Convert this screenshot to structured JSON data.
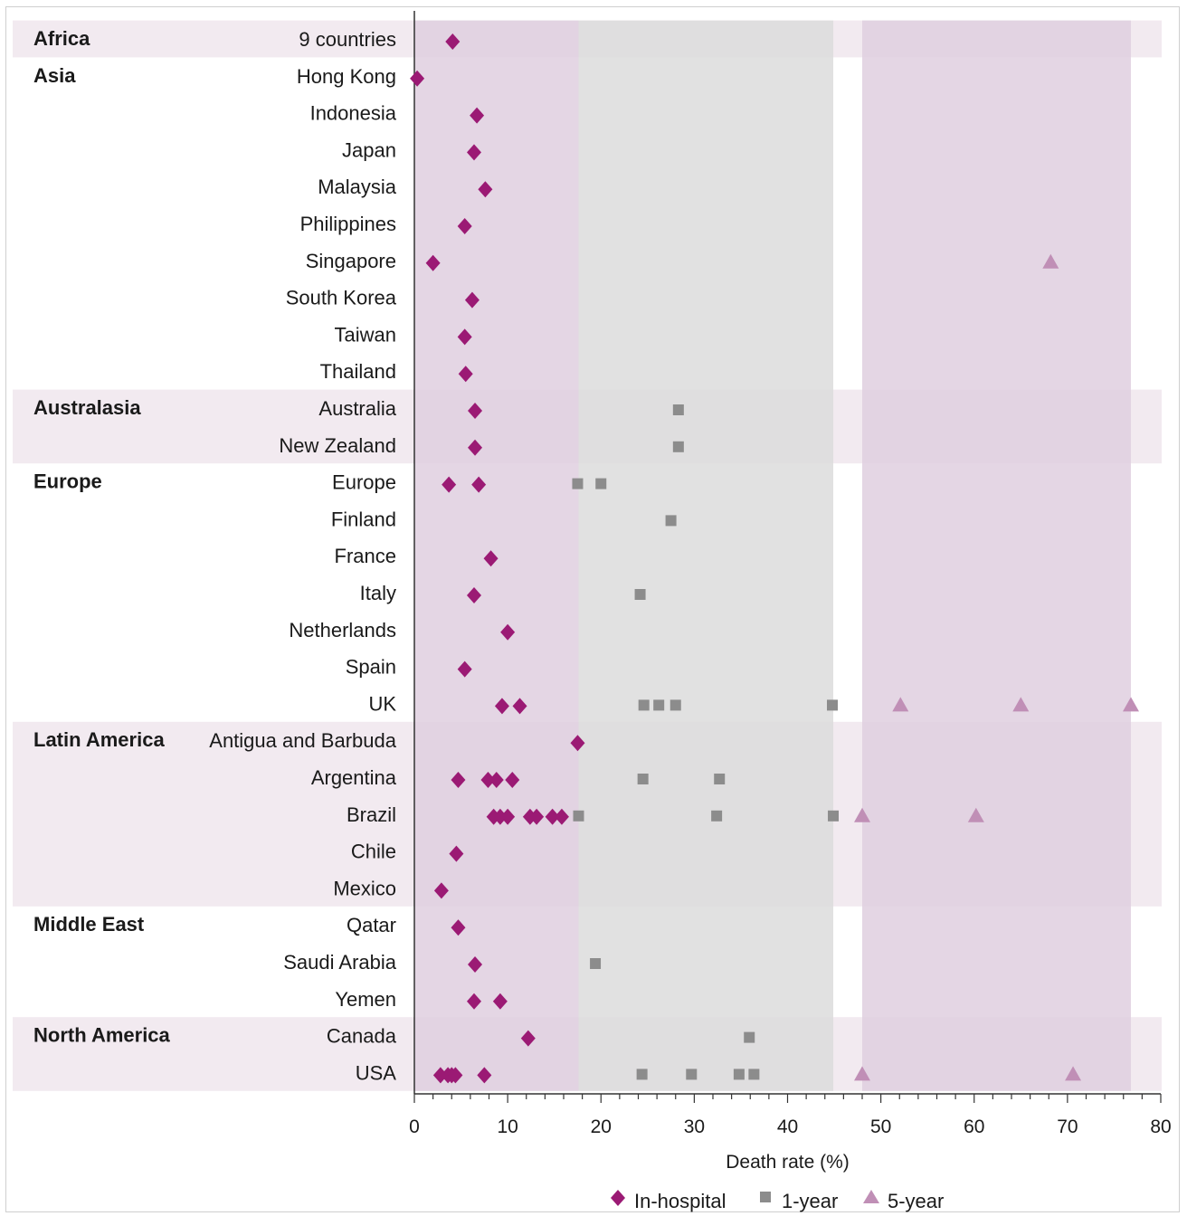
{
  "chart_data": {
    "type": "scatter",
    "xlabel": "Death rate (%)",
    "xlim": [
      0,
      80
    ],
    "x_ticks": [
      "0",
      "10",
      "20",
      "30",
      "40",
      "50",
      "60",
      "70",
      "80"
    ],
    "colors": {
      "in_hospital": "#9b1a74",
      "one_year": "#8c8c8c",
      "five_year": "#c08fb6",
      "band_in_hospital": "#dfcfdf",
      "band_one_year": "#dcdcdc",
      "band_five_year": "#dfcfdf",
      "region_shade": "#f2eaf0"
    },
    "ranges": {
      "in_hospital": [
        0,
        17.6
      ],
      "one_year": [
        17.6,
        44.9
      ],
      "five_year": [
        48,
        76.8
      ]
    },
    "legend": [
      {
        "key": "in_hospital",
        "label": "In-hospital",
        "marker": "diamond"
      },
      {
        "key": "one_year",
        "label": "1-year",
        "marker": "square"
      },
      {
        "key": "five_year",
        "label": "5-year",
        "marker": "triangle"
      }
    ],
    "regions": [
      {
        "name": "Africa",
        "shaded": true,
        "rows": [
          {
            "label": "9 countries",
            "in_hospital": [
              4.1
            ],
            "one_year": [],
            "five_year": []
          }
        ]
      },
      {
        "name": "Asia",
        "shaded": false,
        "rows": [
          {
            "label": "Hong Kong",
            "in_hospital": [
              0.3
            ],
            "one_year": [],
            "five_year": []
          },
          {
            "label": "Indonesia",
            "in_hospital": [
              6.7
            ],
            "one_year": [],
            "five_year": []
          },
          {
            "label": "Japan",
            "in_hospital": [
              6.4
            ],
            "one_year": [],
            "five_year": []
          },
          {
            "label": "Malaysia",
            "in_hospital": [
              7.6
            ],
            "one_year": [],
            "five_year": []
          },
          {
            "label": "Philippines",
            "in_hospital": [
              5.4
            ],
            "one_year": [],
            "five_year": []
          },
          {
            "label": "Singapore",
            "in_hospital": [
              2.0
            ],
            "one_year": [],
            "five_year": [
              68.2
            ]
          },
          {
            "label": "South Korea",
            "in_hospital": [
              6.2
            ],
            "one_year": [],
            "five_year": []
          },
          {
            "label": "Taiwan",
            "in_hospital": [
              5.4
            ],
            "one_year": [],
            "five_year": []
          },
          {
            "label": "Thailand",
            "in_hospital": [
              5.5
            ],
            "one_year": [],
            "five_year": []
          }
        ]
      },
      {
        "name": "Australasia",
        "shaded": true,
        "rows": [
          {
            "label": "Australia",
            "in_hospital": [
              6.5
            ],
            "one_year": [
              28.3
            ],
            "five_year": []
          },
          {
            "label": "New Zealand",
            "in_hospital": [
              6.5
            ],
            "one_year": [
              28.3
            ],
            "five_year": []
          }
        ]
      },
      {
        "name": "Europe",
        "shaded": false,
        "rows": [
          {
            "label": "Europe",
            "in_hospital": [
              3.7,
              6.9
            ],
            "one_year": [
              17.5,
              20.0
            ],
            "five_year": []
          },
          {
            "label": "Finland",
            "in_hospital": [],
            "one_year": [
              27.5
            ],
            "five_year": []
          },
          {
            "label": "France",
            "in_hospital": [
              8.2
            ],
            "one_year": [],
            "five_year": []
          },
          {
            "label": "Italy",
            "in_hospital": [
              6.4
            ],
            "one_year": [
              24.2
            ],
            "five_year": []
          },
          {
            "label": "Netherlands",
            "in_hospital": [
              10.0
            ],
            "one_year": [],
            "five_year": []
          },
          {
            "label": "Spain",
            "in_hospital": [
              5.4
            ],
            "one_year": [],
            "five_year": []
          },
          {
            "label": "UK",
            "in_hospital": [
              9.4,
              11.3
            ],
            "one_year": [
              24.6,
              26.2,
              28.0,
              44.8
            ],
            "five_year": [
              52.1,
              65.0,
              76.8
            ]
          }
        ]
      },
      {
        "name": "Latin America",
        "shaded": true,
        "rows": [
          {
            "label": "Antigua and Barbuda",
            "in_hospital": [
              17.5
            ],
            "one_year": [],
            "five_year": []
          },
          {
            "label": "Argentina",
            "in_hospital": [
              4.7,
              7.9,
              8.8,
              10.5
            ],
            "one_year": [
              24.5,
              32.7
            ],
            "five_year": []
          },
          {
            "label": "Brazil",
            "in_hospital": [
              8.5,
              9.2,
              10.0,
              12.4,
              13.1,
              14.8,
              15.8
            ],
            "one_year": [
              17.6,
              32.4,
              44.9
            ],
            "five_year": [
              48.0,
              60.2
            ]
          },
          {
            "label": "Chile",
            "in_hospital": [
              4.5
            ],
            "one_year": [],
            "five_year": []
          },
          {
            "label": "Mexico",
            "in_hospital": [
              2.9
            ],
            "one_year": [],
            "five_year": []
          }
        ]
      },
      {
        "name": "Middle East",
        "shaded": false,
        "rows": [
          {
            "label": "Qatar",
            "in_hospital": [
              4.7
            ],
            "one_year": [],
            "five_year": []
          },
          {
            "label": "Saudi Arabia",
            "in_hospital": [
              6.5
            ],
            "one_year": [
              19.4
            ],
            "five_year": []
          },
          {
            "label": "Yemen",
            "in_hospital": [
              6.4,
              9.2
            ],
            "one_year": [],
            "five_year": []
          }
        ]
      },
      {
        "name": "North America",
        "shaded": true,
        "rows": [
          {
            "label": "Canada",
            "in_hospital": [
              12.2
            ],
            "one_year": [
              35.9
            ],
            "five_year": []
          },
          {
            "label": "USA",
            "in_hospital": [
              2.8,
              3.6,
              4.0,
              4.4,
              7.5
            ],
            "one_year": [
              24.4,
              29.7,
              34.8,
              36.4
            ],
            "five_year": [
              48.0,
              70.6
            ]
          }
        ]
      }
    ]
  }
}
